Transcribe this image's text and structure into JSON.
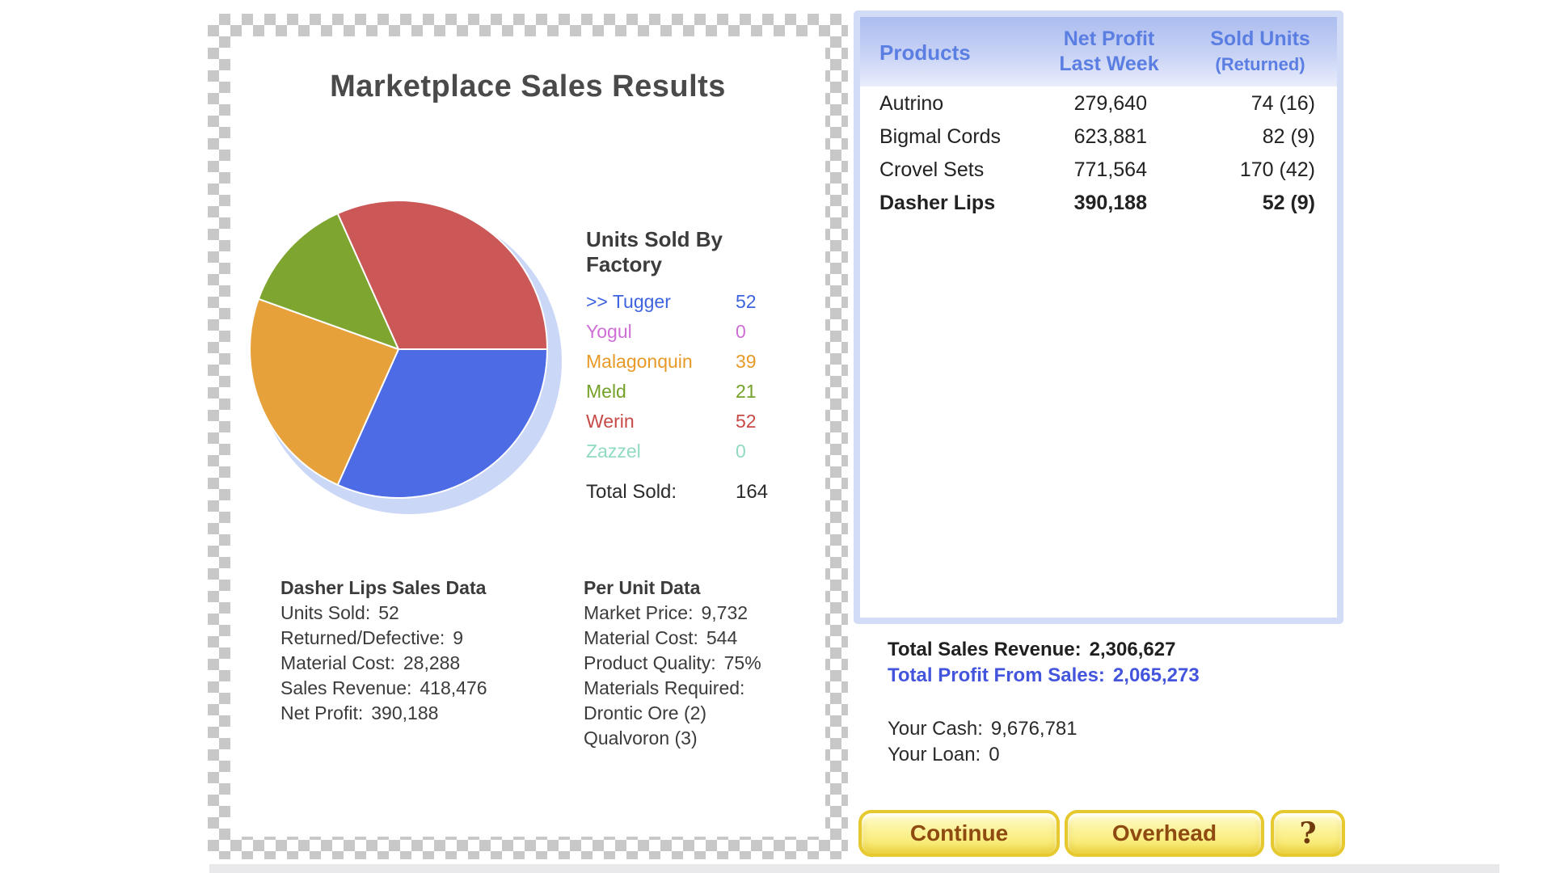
{
  "left_panel": {
    "title": "Marketplace Sales Results",
    "legend": {
      "heading": "Units Sold By Factory",
      "items": [
        {
          "label": ">> Tugger",
          "value": "52",
          "color": "#3e63df"
        },
        {
          "label": "Yogul",
          "value": "0",
          "color": "#ce6ed6"
        },
        {
          "label": "Malagonquin",
          "value": "39",
          "color": "#e89a27"
        },
        {
          "label": "Meld",
          "value": "21",
          "color": "#74a128"
        },
        {
          "label": "Werin",
          "value": "52",
          "color": "#c84a47"
        },
        {
          "label": "Zazzel",
          "value": "0",
          "color": "#90dac1"
        }
      ],
      "total": {
        "label": "Total Sold:",
        "value": "164"
      }
    },
    "sales_block": {
      "heading": "Dasher Lips Sales Data",
      "rows": [
        {
          "label": "Units Sold:",
          "value": "52"
        },
        {
          "label": "Returned/Defective:",
          "value": "9"
        },
        {
          "label": "Material Cost:",
          "value": "28,288"
        },
        {
          "label": "Sales Revenue:",
          "value": "418,476"
        },
        {
          "label": "Net Profit:",
          "value": "390,188"
        }
      ]
    },
    "per_unit_block": {
      "heading": "Per Unit Data",
      "rows": [
        {
          "label": "Market Price:",
          "value": "9,732"
        },
        {
          "label": "Material Cost:",
          "value": "544"
        },
        {
          "label": "Product Quality:",
          "value": "75%"
        },
        {
          "label": "Materials Required:",
          "value": ""
        },
        {
          "label": "Drontic Ore (2)",
          "value": ""
        },
        {
          "label": "Qualvoron (3)",
          "value": ""
        }
      ]
    }
  },
  "chart_data": {
    "type": "pie",
    "title": "Units Sold By Factory",
    "total": 164,
    "start_angle": "3 o'clock, clockwise",
    "shadow_color": "#cbd7f7",
    "slices": [
      {
        "label": "Tugger",
        "value": 52,
        "color": "#4d6be5"
      },
      {
        "label": "Malagonquin",
        "value": 39,
        "color": "#e6a13b"
      },
      {
        "label": "Meld",
        "value": 21,
        "color": "#7ea52f"
      },
      {
        "label": "Werin",
        "value": 52,
        "color": "#cb5857"
      },
      {
        "label": "Yogul",
        "value": 0,
        "color": "#ce6ed6"
      },
      {
        "label": "Zazzel",
        "value": 0,
        "color": "#90dac1"
      }
    ]
  },
  "right_panel": {
    "table": {
      "columns": [
        {
          "line1": "Products",
          "line2": ""
        },
        {
          "line1": "Net Profit",
          "line2": "Last Week"
        },
        {
          "line1": "Sold Units",
          "line2": "(Returned)"
        }
      ],
      "rows": [
        {
          "product": "Autrino",
          "net_profit": "279,640",
          "sold_units": "74 (16)",
          "bold": false
        },
        {
          "product": "Bigmal Cords",
          "net_profit": "623,881",
          "sold_units": "82 (9)",
          "bold": false
        },
        {
          "product": "Crovel Sets",
          "net_profit": "771,564",
          "sold_units": "170 (42)",
          "bold": false
        },
        {
          "product": "Dasher Lips",
          "net_profit": "390,188",
          "sold_units": "52 (9)",
          "bold": true
        }
      ]
    },
    "totals": {
      "sales_revenue_label": "Total Sales Revenue:",
      "sales_revenue_value": "2,306,627",
      "profit_label": "Total Profit From Sales:",
      "profit_value": "2,065,273",
      "cash_label": "Your Cash:",
      "cash_value": "9,676,781",
      "loan_label": "Your Loan:",
      "loan_value": "0"
    }
  },
  "buttons": {
    "continue_label": "Continue",
    "overhead_label": "Overhead",
    "help_label": "?"
  },
  "colors": {
    "header_text": "#5b7ee2",
    "profit_text": "#4355dd",
    "button_text": "#8e4a10",
    "checker_gray": "#c8c8c8",
    "panel_border": "#d3dcf7"
  }
}
